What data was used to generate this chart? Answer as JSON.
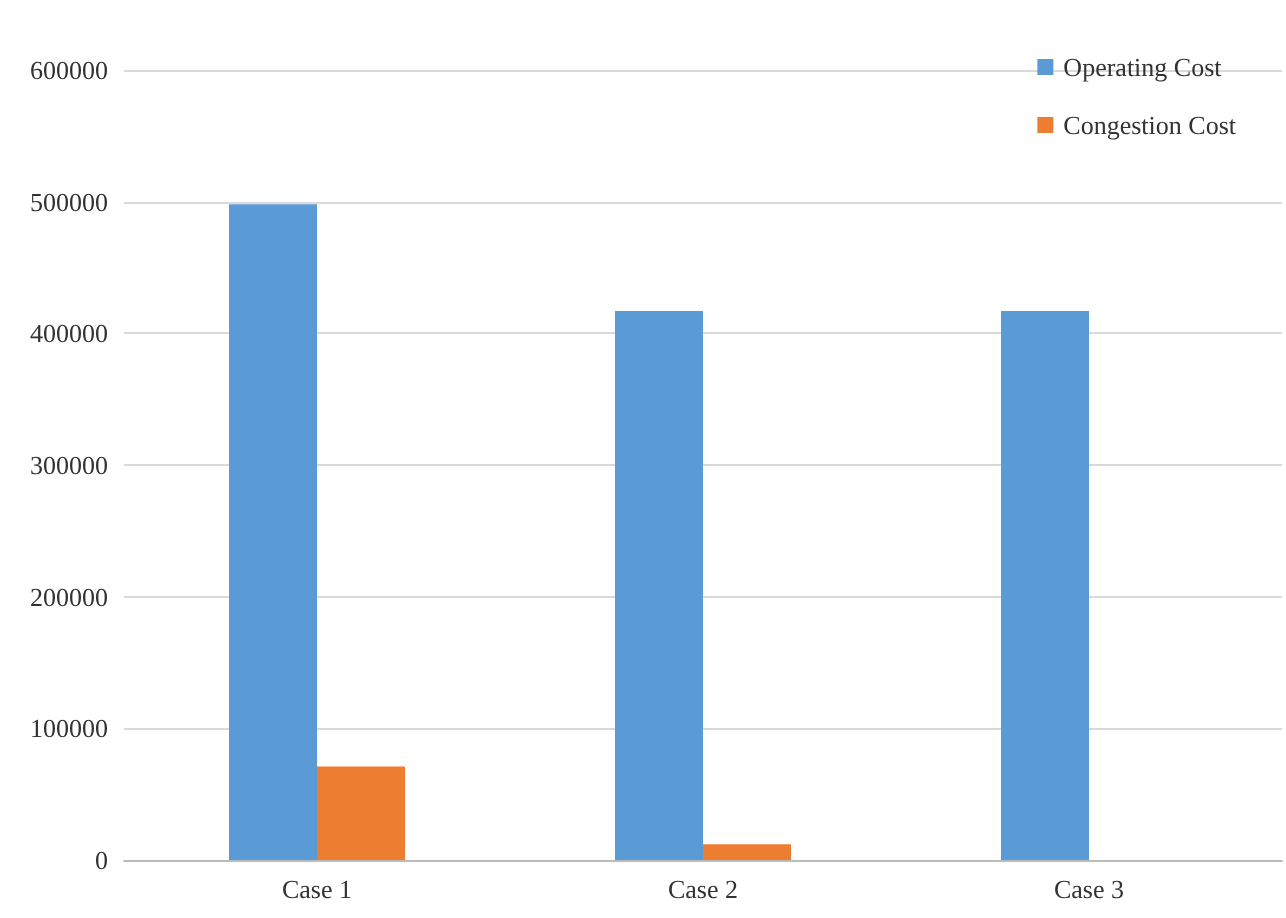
{
  "chart_data": {
    "type": "bar",
    "categories": [
      "Case 1",
      "Case 2",
      "Case 3"
    ],
    "series": [
      {
        "name": "Operating Cost",
        "color": "#5b9bd5",
        "values": [
          498000,
          417000,
          417000
        ]
      },
      {
        "name": "Congestion Cost",
        "color": "#ed7d31",
        "values": [
          71000,
          12000,
          0
        ]
      }
    ],
    "ylim": [
      0,
      600000
    ],
    "yticks": [
      0,
      100000,
      200000,
      300000,
      400000,
      500000,
      600000
    ],
    "grid": "y",
    "legend": "top right"
  }
}
